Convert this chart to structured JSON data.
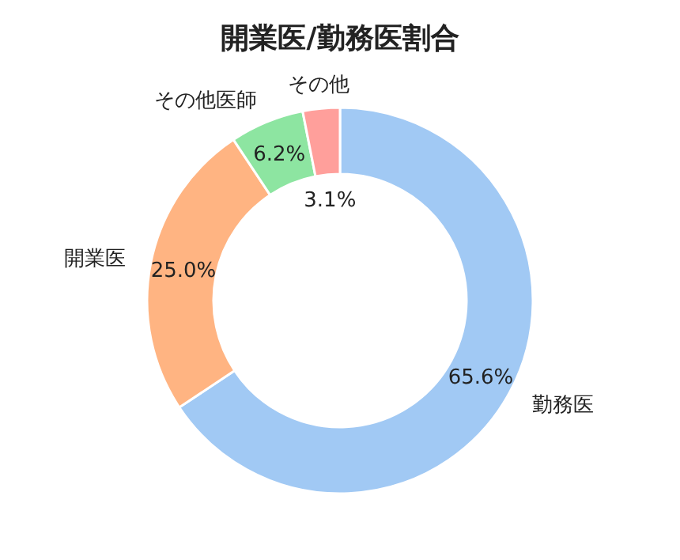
{
  "chart_data": {
    "type": "donut",
    "title": "開業医/勤務医割合",
    "categories": [
      "勤務医",
      "開業医",
      "その他医師",
      "その他"
    ],
    "values": [
      65.6,
      25.0,
      6.2,
      3.1
    ],
    "colors": [
      "#a1c9f4",
      "#ffb482",
      "#8de5a1",
      "#ff9f9b"
    ],
    "value_labels": [
      "65.6%",
      "25.0%",
      "6.2%",
      "3.1%"
    ],
    "legend": false
  }
}
